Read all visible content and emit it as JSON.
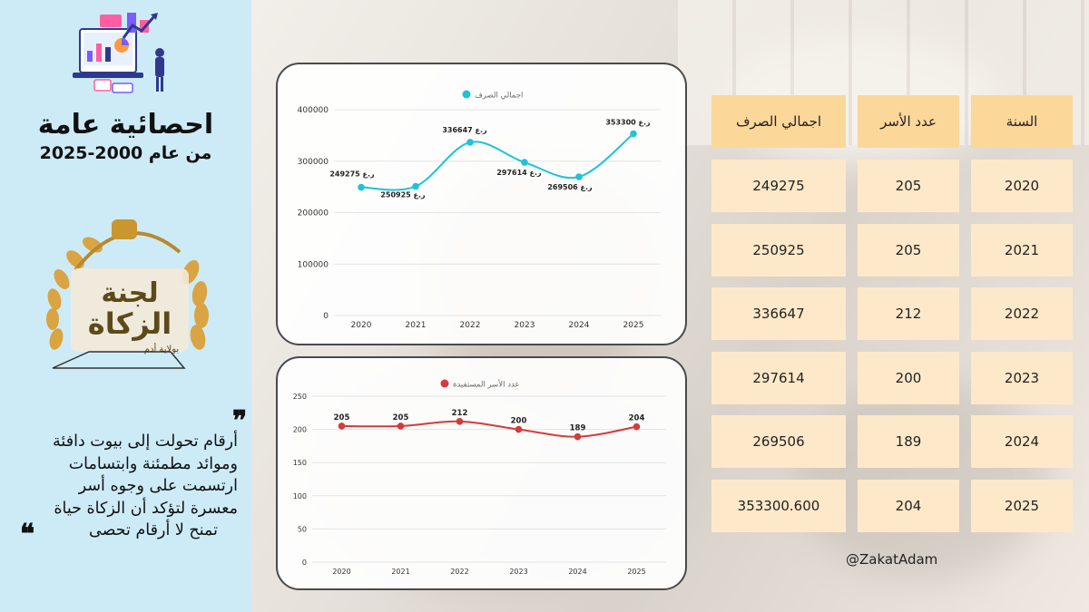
{
  "sidebar": {
    "title": "احصائية عامة",
    "subtitle": "من عام 2000-2025",
    "logo": {
      "line1": "لجنة",
      "line2": "الزكاة",
      "line3": "بولاية أدم"
    },
    "quote_open": "❞",
    "quote_close": "❝",
    "quote_lines": [
      "أرقام تحولت إلى بيوت دافئة",
      "وموائد مطمئنة وابتسامات",
      "ارتسمت على وجوه أسر",
      "معسرة لتؤكد أن الزكاة حياة",
      "تمنح لا أرقام تحصى"
    ]
  },
  "colors": {
    "sidebar_bg": "#cdebf7",
    "line1": "#1fc3d6",
    "line2": "#d63a3a",
    "table_header": "#fcd79a",
    "table_cell": "#fde9c9"
  },
  "chart_data": [
    {
      "type": "line",
      "legend": "اجمالي الصرف",
      "legend_position": "top-center",
      "x": [
        "2020",
        "2021",
        "2022",
        "2023",
        "2024",
        "2025"
      ],
      "series": [
        {
          "name": "اجمالي الصرف",
          "values": [
            249275,
            250925,
            336647,
            297614,
            269506,
            353300
          ]
        }
      ],
      "data_labels": [
        "249275 ر.ع",
        "250925 ر.ع",
        "336647 ر.ع",
        "297614 ر.ع",
        "269506 ر.ع",
        "353300 ر.ع"
      ],
      "y_ticks": [
        "0",
        "100000",
        "200000",
        "300000",
        "400000"
      ],
      "ylim": [
        0,
        400000
      ],
      "grid": true,
      "smooth": true
    },
    {
      "type": "line",
      "legend": "عدد الأسر المستفيدة",
      "legend_position": "top-center",
      "x": [
        "2020",
        "2021",
        "2022",
        "2023",
        "2024",
        "2025"
      ],
      "series": [
        {
          "name": "عدد الأسر المستفيدة",
          "values": [
            205,
            205,
            212,
            200,
            189,
            204
          ]
        }
      ],
      "data_labels": [
        "205",
        "205",
        "212",
        "200",
        "189",
        "204"
      ],
      "y_ticks": [
        "0",
        "50",
        "100",
        "150",
        "200",
        "250"
      ],
      "ylim": [
        0,
        250
      ],
      "grid": true,
      "smooth": true
    }
  ],
  "table": {
    "headers": [
      "اجمالي الصرف",
      "عدد الأسر",
      "السنة"
    ],
    "rows": [
      [
        "249275",
        "205",
        "2020"
      ],
      [
        "250925",
        "205",
        "2021"
      ],
      [
        "336647",
        "212",
        "2022"
      ],
      [
        "297614",
        "200",
        "2023"
      ],
      [
        "269506",
        "189",
        "2024"
      ],
      [
        "353300.600",
        "204",
        "2025"
      ]
    ]
  },
  "handle": "@ZakatAdam"
}
